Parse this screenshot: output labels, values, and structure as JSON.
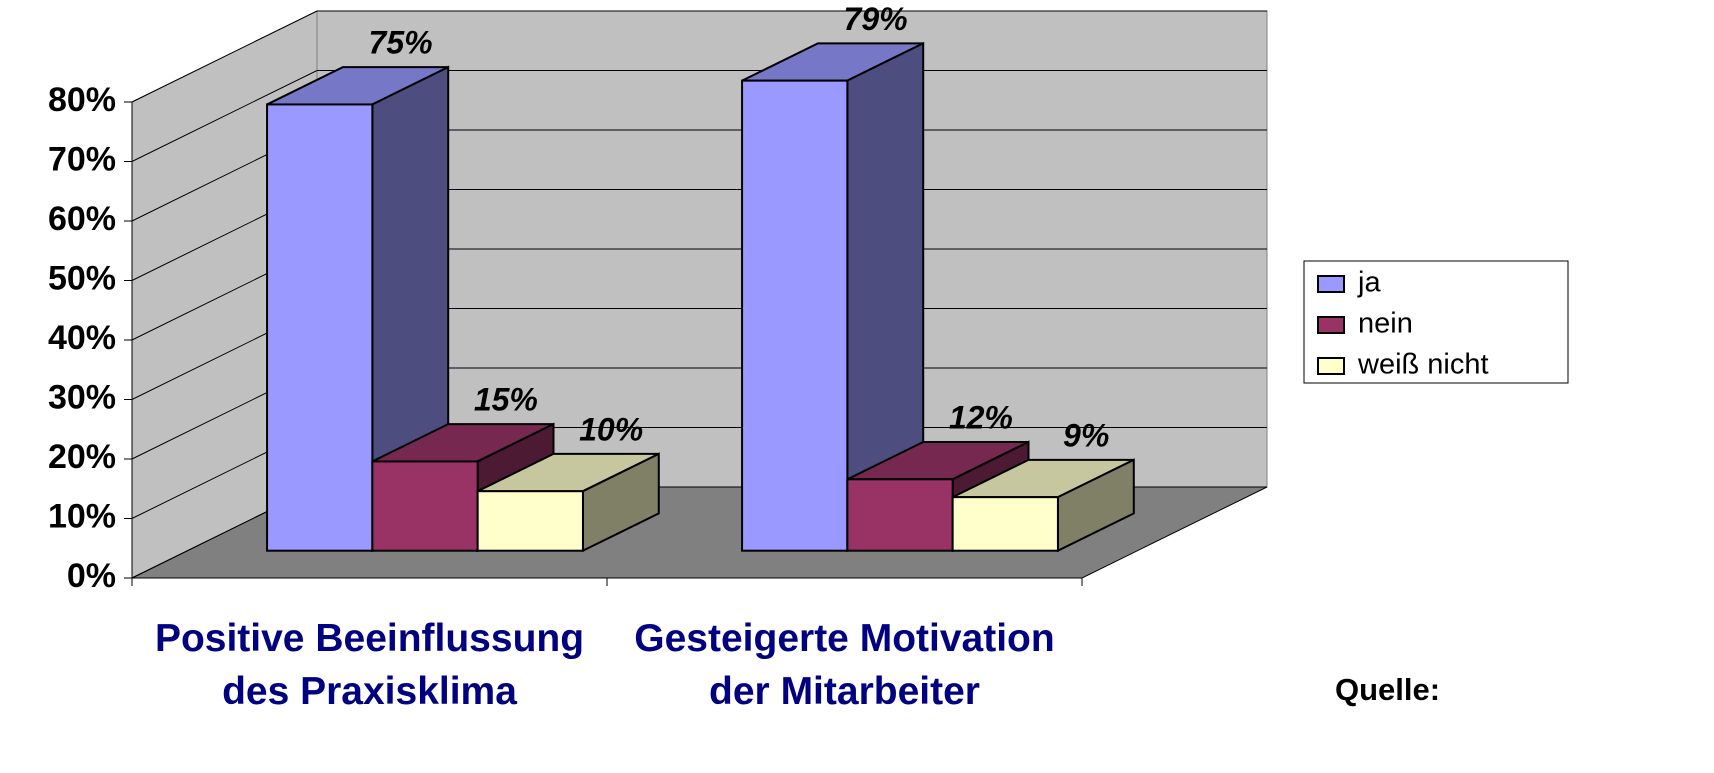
{
  "chart_data": {
    "type": "bar3d",
    "categories": [
      "Positive Beeinflussung des Praxisklima",
      "Gesteigerte Motivation der Mitarbeiter"
    ],
    "series": [
      {
        "name": "ja",
        "color": "#9999ff",
        "values": [
          75,
          79
        ],
        "value_labels": [
          "75%",
          "79%"
        ]
      },
      {
        "name": "nein",
        "color": "#993366",
        "values": [
          15,
          12
        ],
        "value_labels": [
          "15%",
          "12%"
        ]
      },
      {
        "name": "weiß nicht",
        "color": "#ffffcc",
        "values": [
          10,
          9
        ],
        "value_labels": [
          "10%",
          "9%"
        ]
      }
    ],
    "ylim": [
      0,
      80
    ],
    "yticks": [
      {
        "value": 0,
        "label": "0%"
      },
      {
        "value": 10,
        "label": "10%"
      },
      {
        "value": 20,
        "label": "20%"
      },
      {
        "value": 30,
        "label": "30%"
      },
      {
        "value": 40,
        "label": "40%"
      },
      {
        "value": 50,
        "label": "50%"
      },
      {
        "value": 60,
        "label": "60%"
      },
      {
        "value": 70,
        "label": "70%"
      },
      {
        "value": 80,
        "label": "80%"
      }
    ],
    "grid": true,
    "legend": "right",
    "wall_color": "#c0c0c0",
    "floor_color": "#808080",
    "source": "Quelle:"
  }
}
